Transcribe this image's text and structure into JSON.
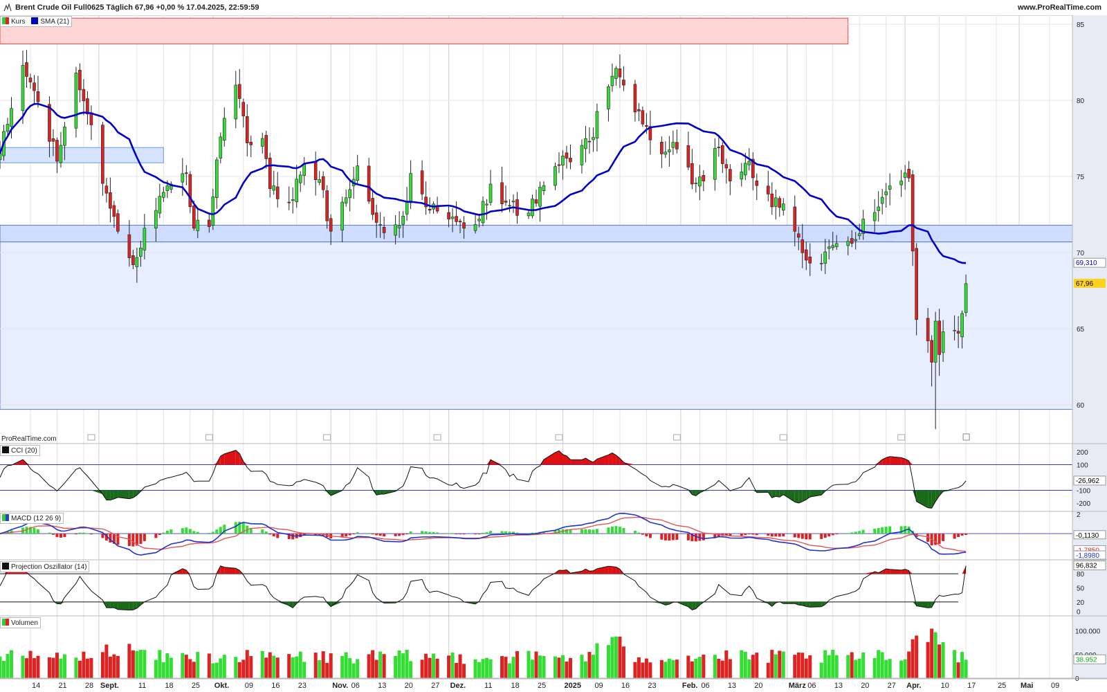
{
  "header": {
    "title": "Brent Crude Oil Full0625 Täglich 67,96 +0,00 % 17.04.2025, 22:59:59",
    "site": "www.ProRealTime.com",
    "watermark": "ProRealTime.com"
  },
  "legends": {
    "kurs": "Kurs",
    "sma": "SMA (21)",
    "cci": "CCI (20)",
    "macd": "MACD (12 26 9)",
    "projection": "Projection Oszillator (14)",
    "volume": "Volumen"
  },
  "colors": {
    "up": "#33dd33",
    "down": "#dd2222",
    "sma": "#0000cc",
    "zone_fill": "#e6eeff",
    "zone_line": "#5577cc",
    "resistance_fill": "#ffd6d6",
    "grid": "#e3e3e3",
    "axis_bg": "#e6ecf5",
    "price_tag": "#ffd21f"
  },
  "chart_data": [
    {
      "type": "candlestick",
      "name": "Kurs",
      "y_ticks": [
        "85",
        "80",
        "75",
        "70",
        "65",
        "60"
      ],
      "ylim": [
        57.5,
        85.5
      ],
      "sma_label": "69,310",
      "sma_last": 69.31,
      "last_label": "67,96",
      "last": 67.96,
      "zones": [
        {
          "kind": "resistance",
          "from_date": "2024-08-06",
          "to_date": "2025-03-17",
          "low": 83.7,
          "high": 85.4
        },
        {
          "kind": "support",
          "from_date": "2024-08-06",
          "to_date": "2025-05-15",
          "low": 70.7,
          "high": 71.8
        },
        {
          "kind": "range",
          "from_date": "2024-08-06",
          "to_date": "2025-05-15",
          "low": 59.7,
          "high": 70.7
        },
        {
          "kind": "box",
          "from_date": "2024-08-06",
          "to_date": "2024-09-18",
          "low": 75.9,
          "high": 76.9
        }
      ],
      "x_labels": [
        {
          "text": "14",
          "date": "2024-08-14",
          "bold": false
        },
        {
          "text": "21",
          "date": "2024-08-21",
          "bold": false
        },
        {
          "text": "28",
          "date": "2024-08-28",
          "bold": false
        },
        {
          "text": "Sept.",
          "date": "2024-09-01",
          "bold": true
        },
        {
          "text": "11",
          "date": "2024-09-11",
          "bold": false
        },
        {
          "text": "18",
          "date": "2024-09-18",
          "bold": false
        },
        {
          "text": "25",
          "date": "2024-09-25",
          "bold": false
        },
        {
          "text": "Okt.",
          "date": "2024-10-01",
          "bold": true
        },
        {
          "text": "09",
          "date": "2024-10-09",
          "bold": false
        },
        {
          "text": "16",
          "date": "2024-10-16",
          "bold": false
        },
        {
          "text": "23",
          "date": "2024-10-23",
          "bold": false
        },
        {
          "text": "Nov.",
          "date": "2024-11-01",
          "bold": true
        },
        {
          "text": "06",
          "date": "2024-11-06",
          "bold": false
        },
        {
          "text": "13",
          "date": "2024-11-13",
          "bold": false
        },
        {
          "text": "20",
          "date": "2024-11-20",
          "bold": false
        },
        {
          "text": "27",
          "date": "2024-11-27",
          "bold": false
        },
        {
          "text": "Dez.",
          "date": "2024-12-02",
          "bold": true
        },
        {
          "text": "11",
          "date": "2024-12-11",
          "bold": false
        },
        {
          "text": "18",
          "date": "2024-12-18",
          "bold": false
        },
        {
          "text": "25",
          "date": "2024-12-25",
          "bold": false
        },
        {
          "text": "2025",
          "date": "2025-01-01",
          "bold": true
        },
        {
          "text": "09",
          "date": "2025-01-09",
          "bold": false
        },
        {
          "text": "16",
          "date": "2025-01-16",
          "bold": false
        },
        {
          "text": "23",
          "date": "2025-01-23",
          "bold": false
        },
        {
          "text": "Feb.",
          "date": "2025-02-01",
          "bold": true
        },
        {
          "text": "06",
          "date": "2025-02-06",
          "bold": false
        },
        {
          "text": "13",
          "date": "2025-02-13",
          "bold": false
        },
        {
          "text": "20",
          "date": "2025-02-20",
          "bold": false
        },
        {
          "text": "März",
          "date": "2025-03-01",
          "bold": true
        },
        {
          "text": "06",
          "date": "2025-03-06",
          "bold": false
        },
        {
          "text": "13",
          "date": "2025-03-13",
          "bold": false
        },
        {
          "text": "20",
          "date": "2025-03-20",
          "bold": false
        },
        {
          "text": "27",
          "date": "2025-03-27",
          "bold": false
        },
        {
          "text": "Apr.",
          "date": "2025-04-01",
          "bold": true
        },
        {
          "text": "10",
          "date": "2025-04-10",
          "bold": false
        },
        {
          "text": "17",
          "date": "2025-04-17",
          "bold": false
        },
        {
          "text": "25",
          "date": "2025-04-25",
          "bold": false
        },
        {
          "text": "Mai",
          "date": "2025-05-01",
          "bold": true
        },
        {
          "text": "09",
          "date": "2025-05-09",
          "bold": false
        }
      ],
      "waypoints": [
        {
          "date": "2024-08-06",
          "close": 76.5
        },
        {
          "date": "2024-08-12",
          "close": 82.3
        },
        {
          "date": "2024-08-16",
          "close": 79.9
        },
        {
          "date": "2024-08-21",
          "close": 76.0
        },
        {
          "date": "2024-08-26",
          "close": 81.8
        },
        {
          "date": "2024-08-29",
          "close": 79.1
        },
        {
          "date": "2024-09-03",
          "close": 73.9
        },
        {
          "date": "2024-09-06",
          "close": 71.4
        },
        {
          "date": "2024-09-10",
          "close": 69.2
        },
        {
          "date": "2024-09-13",
          "close": 71.6
        },
        {
          "date": "2024-09-17",
          "close": 73.7
        },
        {
          "date": "2024-09-20",
          "close": 74.5
        },
        {
          "date": "2024-09-24",
          "close": 75.2
        },
        {
          "date": "2024-09-26",
          "close": 71.6
        },
        {
          "date": "2024-09-30",
          "close": 71.7
        },
        {
          "date": "2024-10-03",
          "close": 77.6
        },
        {
          "date": "2024-10-07",
          "close": 81.0
        },
        {
          "date": "2024-10-10",
          "close": 77.2
        },
        {
          "date": "2024-10-14",
          "close": 77.5
        },
        {
          "date": "2024-10-16",
          "close": 74.2
        },
        {
          "date": "2024-10-21",
          "close": 73.3
        },
        {
          "date": "2024-10-25",
          "close": 75.8
        },
        {
          "date": "2024-10-29",
          "close": 74.8
        },
        {
          "date": "2024-11-01",
          "close": 71.4
        },
        {
          "date": "2024-11-05",
          "close": 73.6
        },
        {
          "date": "2024-11-08",
          "close": 75.7
        },
        {
          "date": "2024-11-12",
          "close": 72.5
        },
        {
          "date": "2024-11-15",
          "close": 71.3
        },
        {
          "date": "2024-11-20",
          "close": 72.4
        },
        {
          "date": "2024-11-22",
          "close": 75.2
        },
        {
          "date": "2024-11-26",
          "close": 73.0
        },
        {
          "date": "2024-12-02",
          "close": 72.2
        },
        {
          "date": "2024-12-06",
          "close": 71.6
        },
        {
          "date": "2024-12-10",
          "close": 72.2
        },
        {
          "date": "2024-12-13",
          "close": 74.5
        },
        {
          "date": "2024-12-18",
          "close": 73.1
        },
        {
          "date": "2024-12-23",
          "close": 72.6
        },
        {
          "date": "2024-12-27",
          "close": 74.4
        },
        {
          "date": "2025-01-02",
          "close": 76.2
        },
        {
          "date": "2025-01-08",
          "close": 77.3
        },
        {
          "date": "2025-01-13",
          "close": 80.9
        },
        {
          "date": "2025-01-15",
          "close": 82.1
        },
        {
          "date": "2025-01-17",
          "close": 81.0
        },
        {
          "date": "2025-01-21",
          "close": 79.3
        },
        {
          "date": "2025-01-24",
          "close": 77.4
        },
        {
          "date": "2025-01-28",
          "close": 76.6
        },
        {
          "date": "2025-01-31",
          "close": 76.8
        },
        {
          "date": "2025-02-04",
          "close": 74.5
        },
        {
          "date": "2025-02-07",
          "close": 74.7
        },
        {
          "date": "2025-02-11",
          "close": 76.9
        },
        {
          "date": "2025-02-14",
          "close": 74.7
        },
        {
          "date": "2025-02-19",
          "close": 76.0
        },
        {
          "date": "2025-02-21",
          "close": 74.4
        },
        {
          "date": "2025-02-25",
          "close": 73.0
        },
        {
          "date": "2025-02-28",
          "close": 73.2
        },
        {
          "date": "2025-03-04",
          "close": 71.0
        },
        {
          "date": "2025-03-06",
          "close": 69.5
        },
        {
          "date": "2025-03-10",
          "close": 69.3
        },
        {
          "date": "2025-03-14",
          "close": 70.6
        },
        {
          "date": "2025-03-18",
          "close": 70.6
        },
        {
          "date": "2025-03-21",
          "close": 72.2
        },
        {
          "date": "2025-03-25",
          "close": 73.0
        },
        {
          "date": "2025-03-27",
          "close": 74.0
        },
        {
          "date": "2025-03-31",
          "close": 74.7
        },
        {
          "date": "2025-04-02",
          "close": 74.9
        },
        {
          "date": "2025-04-03",
          "close": 70.1
        },
        {
          "date": "2025-04-04",
          "close": 65.6
        },
        {
          "date": "2025-04-07",
          "close": 64.2
        },
        {
          "date": "2025-04-08",
          "close": 62.8
        },
        {
          "date": "2025-04-09",
          "close": 65.5
        },
        {
          "date": "2025-04-10",
          "close": 63.3
        },
        {
          "date": "2025-04-11",
          "close": 64.8
        },
        {
          "date": "2025-04-14",
          "close": 64.9
        },
        {
          "date": "2025-04-15",
          "close": 64.7
        },
        {
          "date": "2025-04-16",
          "close": 66.0
        },
        {
          "date": "2025-04-17",
          "close": 67.96
        }
      ]
    },
    {
      "type": "line",
      "name": "CCI (20)",
      "y_ticks": [
        "200",
        "100",
        "-100",
        "-200"
      ],
      "ylim": [
        -260,
        260
      ],
      "levels": [
        100,
        -100
      ],
      "last_label": "-26,962",
      "last": -26.962
    },
    {
      "type": "histogram-line",
      "name": "MACD (12 26 9)",
      "y_ticks": [
        "2"
      ],
      "ylim": [
        -2.6,
        2.2
      ],
      "labels": [
        "-0,1130",
        "-1,7850",
        "-1,8980"
      ],
      "histogram_last": -0.113,
      "signal_last": -1.785,
      "macd_last": -1.898
    },
    {
      "type": "line",
      "name": "Projection Oszillator (14)",
      "y_ticks": [
        "80",
        "50",
        "20",
        "0"
      ],
      "ylim": [
        -8,
        108
      ],
      "levels": [
        80,
        20
      ],
      "last_label": "96,832",
      "last": 96.832
    },
    {
      "type": "bar",
      "name": "Volumen",
      "y_ticks": [
        "100.000",
        "50.000",
        "0"
      ],
      "ylim": [
        0,
        130000
      ],
      "last_label": "38.952",
      "last": 38952,
      "peak": 120000
    }
  ]
}
